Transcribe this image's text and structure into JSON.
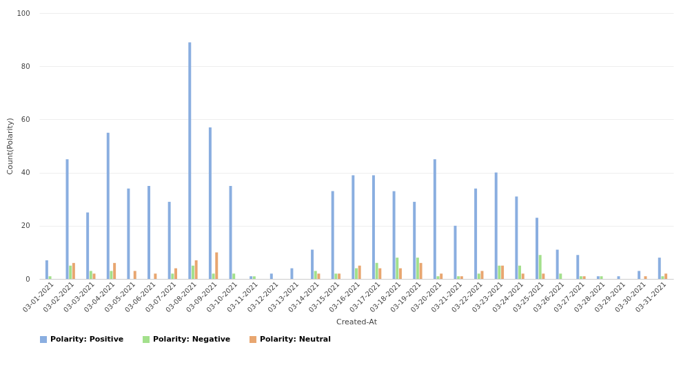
{
  "chart_data": {
    "type": "bar",
    "xlabel": "Created-At",
    "ylabel": "Count(Polarity)",
    "categories": [
      "03-01-2021",
      "03-02-2021",
      "03-03-2021",
      "03-04-2021",
      "03-05-2021",
      "03-06-2021",
      "03-07-2021",
      "03-08-2021",
      "03-09-2021",
      "03-10-2021",
      "03-11-2021",
      "03-12-2021",
      "03-13-2021",
      "03-14-2021",
      "03-15-2021",
      "03-16-2021",
      "03-17-2021",
      "03-18-2021",
      "03-19-2021",
      "03-20-2021",
      "03-21-2021",
      "03-22-2021",
      "03-23-2021",
      "03-24-2021",
      "03-25-2021",
      "03-26-2021",
      "03-27-2021",
      "03-28-2021",
      "03-29-2021",
      "03-30-2021",
      "03-31-2021"
    ],
    "series": [
      {
        "name": "Polarity: Positive",
        "color": "#8aaee0",
        "values": [
          7,
          45,
          25,
          55,
          34,
          35,
          29,
          89,
          57,
          35,
          1,
          2,
          4,
          11,
          33,
          39,
          39,
          33,
          29,
          45,
          20,
          34,
          40,
          31,
          23,
          11,
          9,
          1,
          1,
          3,
          8
        ]
      },
      {
        "name": "Polarity: Negative",
        "color": "#a3e08c",
        "values": [
          1,
          5,
          3,
          3,
          0,
          0,
          2,
          5,
          2,
          2,
          1,
          0,
          0,
          3,
          2,
          4,
          6,
          8,
          8,
          1,
          1,
          2,
          5,
          5,
          9,
          2,
          1,
          1,
          0,
          0,
          1
        ]
      },
      {
        "name": "Polarity: Neutral",
        "color": "#e8a670",
        "values": [
          0,
          6,
          2,
          6,
          3,
          2,
          4,
          7,
          10,
          0,
          0,
          0,
          0,
          2,
          2,
          5,
          4,
          4,
          6,
          2,
          1,
          3,
          5,
          2,
          2,
          0,
          1,
          0,
          0,
          1,
          2
        ]
      }
    ],
    "ylim": [
      0,
      100
    ],
    "yticks": [
      0,
      20,
      40,
      60,
      80,
      100
    ],
    "grid": "y",
    "legend": "bottom"
  }
}
